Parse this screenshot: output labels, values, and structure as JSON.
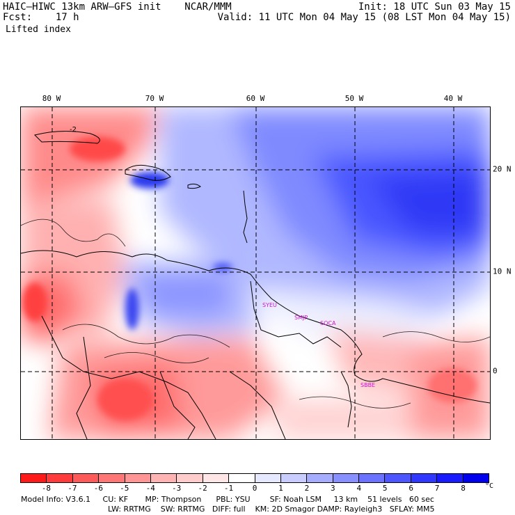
{
  "header": {
    "title_left": "HAIC–HIWC 13km ARW–GFS init    NCAR/MMM",
    "fcst_left": "Fcst:    17 h",
    "variable": "Lifted index",
    "init_right": "Init: 18 UTC Sun 03 May 15",
    "valid_right": "Valid: 11 UTC Mon 04 May 15 (08 LST Mon 04 May 15)"
  },
  "map": {
    "lon_labels": [
      "80 W",
      "70 W",
      "60 W",
      "50 W",
      "40 W"
    ],
    "lat_labels": [
      "20 N",
      "10 N",
      "0"
    ],
    "stations": [
      "SYEU",
      "SMJP",
      "SOCA",
      "SBBE"
    ],
    "contour_label": "-2"
  },
  "colorbar": {
    "colors": [
      "#ff1a1a",
      "#ff3b3b",
      "#ff5a5a",
      "#ff7676",
      "#ff9595",
      "#ffb3b3",
      "#ffcccc",
      "#ffe6e6",
      "#ffffff",
      "#e6e8ff",
      "#c8ccff",
      "#a6adff",
      "#8890ff",
      "#6a72ff",
      "#4d55ff",
      "#3038ff",
      "#1a1aff",
      "#0000ee"
    ],
    "ticks": [
      "-8",
      "-7",
      "-6",
      "-5",
      "-4",
      "-3",
      "-2",
      "-1",
      "0",
      "1",
      "2",
      "3",
      "4",
      "5",
      "6",
      "7",
      "8"
    ],
    "unit": "°C"
  },
  "footer": {
    "line1": "Model Info: V3.6.1     CU: KF       MP: Thompson      PBL: YSU        SF: Noah LSM     13 km    51 levels   60 sec",
    "line2": "LW: RRTMG    SW: RRTMG   DIFF: full    KM: 2D Smagor DAMP: Rayleigh3   SFLAY: MM5"
  }
}
